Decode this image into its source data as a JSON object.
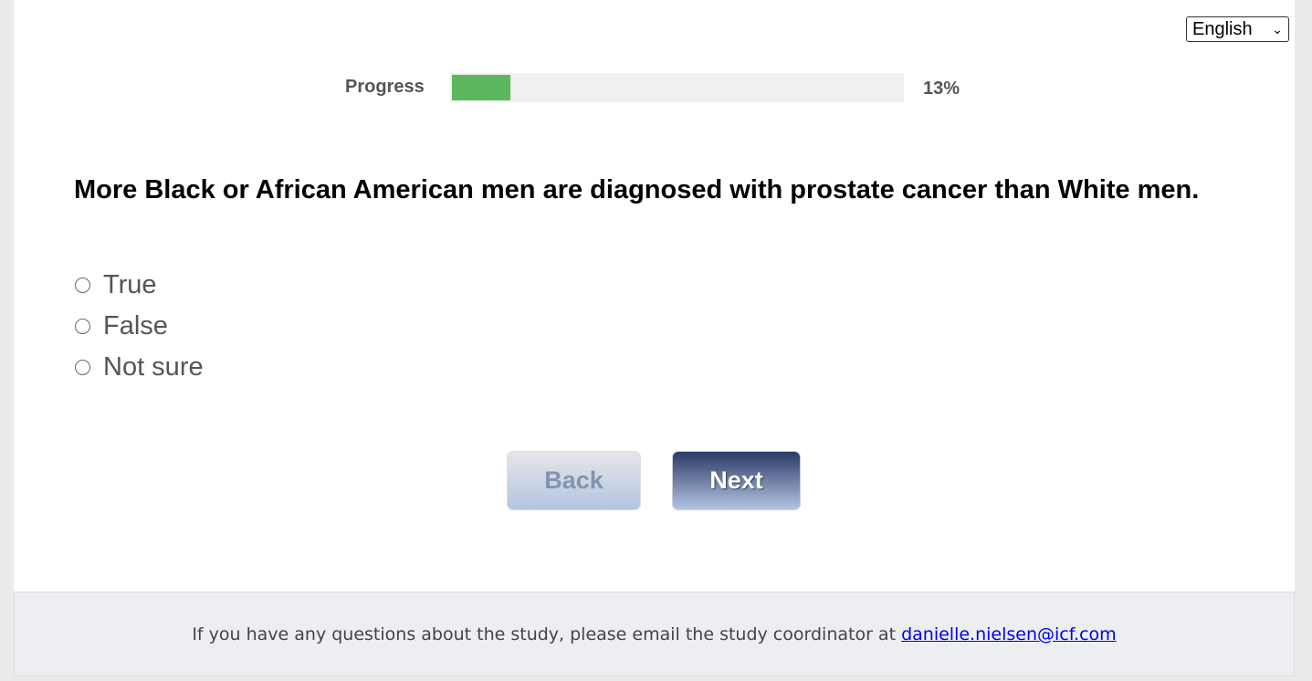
{
  "language": {
    "selected": "English"
  },
  "progress": {
    "label": "Progress",
    "percent": 13,
    "percent_label": "13%",
    "fill_color": "#5cb85c"
  },
  "question": {
    "text": "More Black or African American men are diagnosed with prostate cancer than White men.",
    "options": [
      "True",
      "False",
      "Not sure"
    ]
  },
  "buttons": {
    "back": "Back",
    "next": "Next"
  },
  "footer": {
    "text": "If you have any questions about the study, please email the study coordinator at ",
    "email": "danielle.nielsen@icf.com"
  }
}
